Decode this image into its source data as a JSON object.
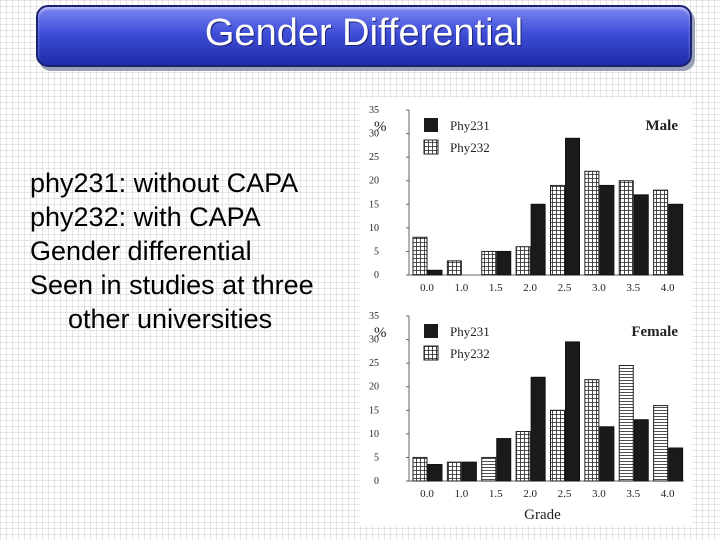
{
  "slide": {
    "title": "Gender Differential",
    "bullets": [
      "phy231: without CAPA",
      "phy232: with CAPA",
      "Gender differential",
      "Seen in studies at three other universities"
    ]
  },
  "colors": {
    "title_bar": "#3f4ed8",
    "phy231_fill": "#1a1a1a",
    "phy232_fill": "#ffffff"
  },
  "chart_data": [
    {
      "type": "bar",
      "title": "Male",
      "ylabel": "%",
      "xlabel": "",
      "ylim": [
        0,
        35
      ],
      "yticks": [
        0,
        5,
        10,
        15,
        20,
        25,
        30,
        35
      ],
      "categories": [
        "0.0",
        "1.0",
        "1.5",
        "2.0",
        "2.5",
        "3.0",
        "3.5",
        "4.0"
      ],
      "legend_position": "top-left",
      "series": [
        {
          "name": "Phy231",
          "style": "solid-black",
          "values": [
            1,
            0,
            5,
            15,
            29,
            19,
            17,
            15
          ]
        },
        {
          "name": "Phy232",
          "style": "hatched-white",
          "values": [
            8,
            3,
            5,
            6,
            19,
            22,
            20,
            18
          ]
        }
      ]
    },
    {
      "type": "bar",
      "title": "Female",
      "ylabel": "%",
      "xlabel": "Grade",
      "ylim": [
        0,
        35
      ],
      "yticks": [
        0,
        5,
        10,
        15,
        20,
        25,
        30,
        35
      ],
      "categories": [
        "0.0",
        "1.0",
        "1.5",
        "2.0",
        "2.5",
        "3.0",
        "3.5",
        "4.0"
      ],
      "legend_position": "top-left",
      "series": [
        {
          "name": "Phy231",
          "style": "solid-black",
          "values": [
            3.5,
            4,
            9,
            22,
            29.5,
            11.5,
            13,
            7
          ]
        },
        {
          "name": "Phy232",
          "style": "hatched-white",
          "values": [
            5,
            4,
            5,
            10.5,
            15,
            21.5,
            24.5,
            16
          ]
        }
      ]
    }
  ]
}
